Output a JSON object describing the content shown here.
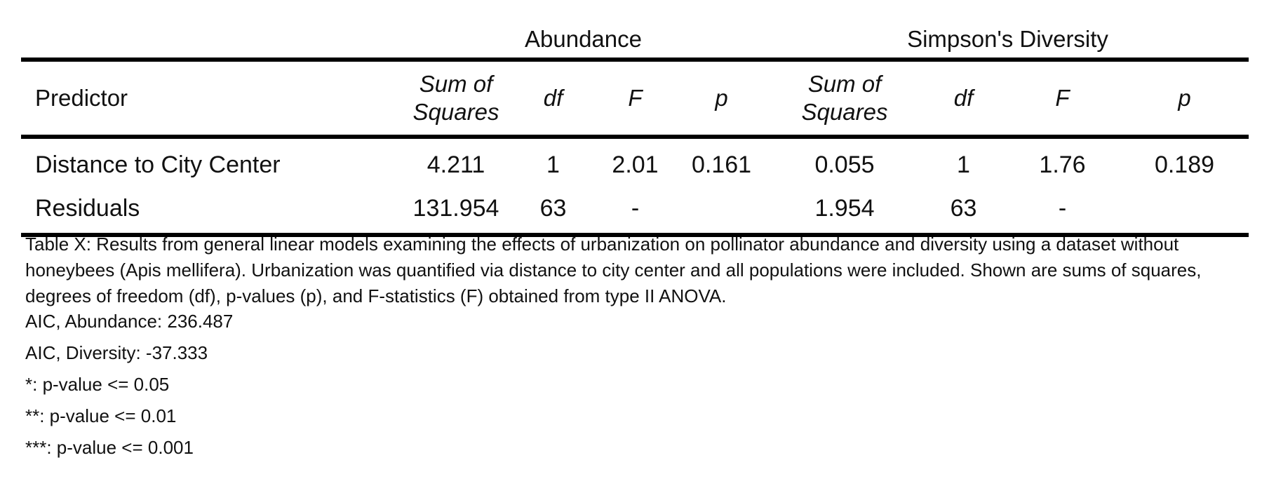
{
  "table": {
    "groups": [
      "Abundance",
      "Simpson's Diversity"
    ],
    "headers": [
      "Predictor",
      "Sum of Squares",
      "df",
      "F",
      "p",
      "Sum of Squares",
      "df",
      "F",
      "p"
    ],
    "rows": [
      [
        "Distance to City Center",
        "4.211",
        "1",
        "2.01",
        "0.161",
        "0.055",
        "1",
        "1.76",
        "0.189"
      ],
      [
        "Residuals",
        "131.954",
        "63",
        "-",
        "",
        "1.954",
        "63",
        "-",
        ""
      ]
    ]
  },
  "caption": "Table X: Results from general linear models examining the effects of urbanization on pollinator abundance and diversity using a dataset without honeybees (Apis mellifera). Urbanization was quantified via distance to city center and all populations were included. Shown are sums of squares, degrees of freedom (df), p-values (p), and F-statistics (F) obtained from type II ANOVA.",
  "notes": [
    "AIC, Abundance: 236.487",
    "AIC, Diversity: -37.333",
    "*: p-value <= 0.05",
    "**: p-value <= 0.01",
    "***: p-value <= 0.001"
  ]
}
